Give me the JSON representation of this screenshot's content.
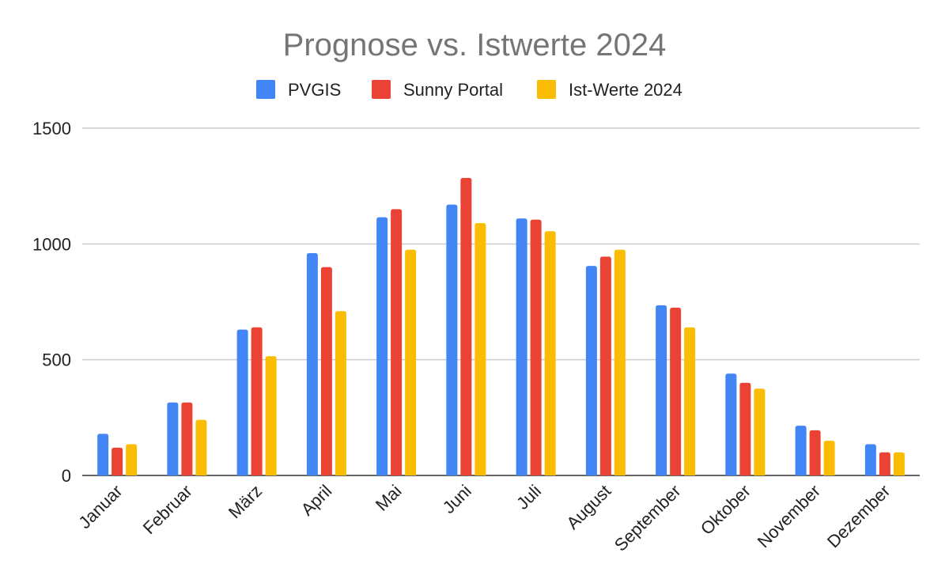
{
  "chart_data": {
    "type": "bar",
    "title": "Prognose vs. Istwerte 2024",
    "xlabel": "",
    "ylabel": "",
    "ylim": [
      0,
      1500
    ],
    "yticks": [
      0,
      500,
      1000,
      1500
    ],
    "grid": true,
    "legend_position": "top-center",
    "categories": [
      "Januar",
      "Februar",
      "März",
      "April",
      "Mai",
      "Juni",
      "Juli",
      "August",
      "September",
      "Oktober",
      "November",
      "Dezember"
    ],
    "series": [
      {
        "name": "PVGIS",
        "color": "#4285F4",
        "values": [
          180,
          315,
          630,
          960,
          1115,
          1170,
          1110,
          905,
          735,
          440,
          215,
          135
        ]
      },
      {
        "name": "Sunny Portal",
        "color": "#EA4335",
        "values": [
          120,
          315,
          640,
          900,
          1150,
          1285,
          1105,
          945,
          725,
          400,
          195,
          100
        ]
      },
      {
        "name": "Ist-Werte 2024",
        "color": "#FBBC04",
        "values": [
          135,
          240,
          515,
          710,
          975,
          1090,
          1055,
          975,
          640,
          375,
          150,
          100
        ]
      }
    ]
  }
}
